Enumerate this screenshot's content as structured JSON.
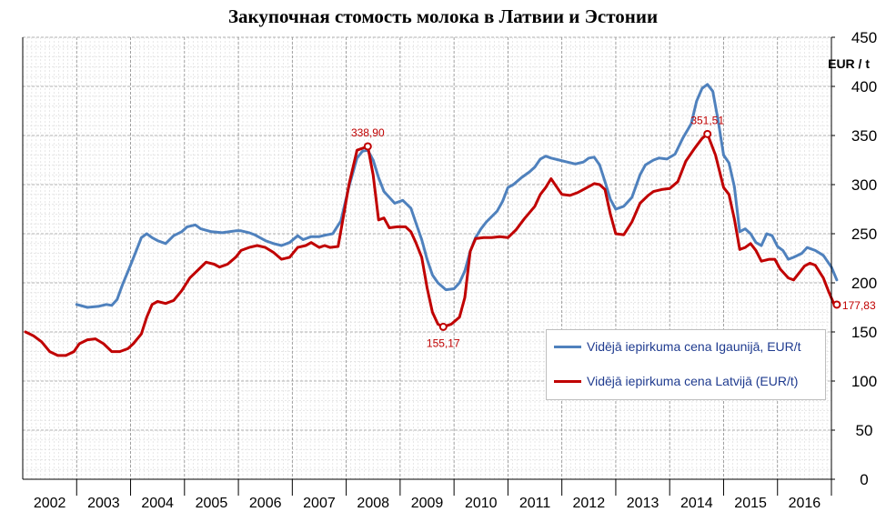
{
  "title": "Закупочная стомость молока в Латвии и Эстонии",
  "chart_data": {
    "type": "line",
    "title": "Закупочная стомость молока в Латвии и Эстонии",
    "unit_label": "EUR / t",
    "ylim": [
      0,
      450
    ],
    "yticks": [
      0,
      50,
      100,
      150,
      200,
      250,
      300,
      350,
      400,
      450
    ],
    "xlim": [
      2001.5,
      2016.5
    ],
    "years": [
      "2002",
      "2003",
      "2004",
      "2005",
      "2006",
      "2007",
      "2008",
      "2009",
      "2010",
      "2011",
      "2012",
      "2013",
      "2014",
      "2015",
      "2016"
    ],
    "grid": true,
    "legend_position": "bottom-right",
    "series": [
      {
        "name": "Vidējā iepirkuma cena Igaunijā, EUR/t",
        "color": "#4f81bd",
        "points": [
          [
            2002.5,
            178
          ],
          [
            2002.7,
            175
          ],
          [
            2002.9,
            176
          ],
          [
            2003.05,
            178
          ],
          [
            2003.15,
            177
          ],
          [
            2003.25,
            183
          ],
          [
            2003.35,
            198
          ],
          [
            2003.5,
            218
          ],
          [
            2003.6,
            232
          ],
          [
            2003.7,
            246
          ],
          [
            2003.8,
            250
          ],
          [
            2003.9,
            246
          ],
          [
            2004.0,
            243
          ],
          [
            2004.15,
            240
          ],
          [
            2004.3,
            248
          ],
          [
            2004.45,
            252
          ],
          [
            2004.55,
            257
          ],
          [
            2004.7,
            259
          ],
          [
            2004.8,
            255
          ],
          [
            2005.0,
            252
          ],
          [
            2005.2,
            251
          ],
          [
            2005.45,
            253
          ],
          [
            2005.55,
            253
          ],
          [
            2005.7,
            251
          ],
          [
            2005.8,
            249
          ],
          [
            2006.0,
            243
          ],
          [
            2006.15,
            240
          ],
          [
            2006.3,
            238
          ],
          [
            2006.45,
            241
          ],
          [
            2006.6,
            248
          ],
          [
            2006.7,
            244
          ],
          [
            2006.85,
            247
          ],
          [
            2007.0,
            247
          ],
          [
            2007.15,
            249
          ],
          [
            2007.25,
            250
          ],
          [
            2007.4,
            263
          ],
          [
            2007.55,
            298
          ],
          [
            2007.7,
            327
          ],
          [
            2007.8,
            334
          ],
          [
            2007.9,
            335
          ],
          [
            2008.0,
            325
          ],
          [
            2008.1,
            307
          ],
          [
            2008.2,
            293
          ],
          [
            2008.3,
            287
          ],
          [
            2008.4,
            281
          ],
          [
            2008.55,
            284
          ],
          [
            2008.7,
            276
          ],
          [
            2008.8,
            260
          ],
          [
            2008.9,
            244
          ],
          [
            2009.0,
            224
          ],
          [
            2009.1,
            208
          ],
          [
            2009.2,
            200
          ],
          [
            2009.35,
            193
          ],
          [
            2009.5,
            194
          ],
          [
            2009.6,
            200
          ],
          [
            2009.7,
            212
          ],
          [
            2009.8,
            232
          ],
          [
            2009.9,
            246
          ],
          [
            2010.0,
            255
          ],
          [
            2010.1,
            262
          ],
          [
            2010.3,
            273
          ],
          [
            2010.4,
            283
          ],
          [
            2010.5,
            297
          ],
          [
            2010.6,
            300
          ],
          [
            2010.75,
            307
          ],
          [
            2010.9,
            313
          ],
          [
            2011.0,
            318
          ],
          [
            2011.1,
            326
          ],
          [
            2011.2,
            329
          ],
          [
            2011.3,
            327
          ],
          [
            2011.45,
            325
          ],
          [
            2011.6,
            323
          ],
          [
            2011.75,
            321
          ],
          [
            2011.9,
            323
          ],
          [
            2012.0,
            327
          ],
          [
            2012.1,
            328
          ],
          [
            2012.2,
            320
          ],
          [
            2012.3,
            303
          ],
          [
            2012.4,
            285
          ],
          [
            2012.5,
            275
          ],
          [
            2012.65,
            278
          ],
          [
            2012.8,
            287
          ],
          [
            2012.95,
            310
          ],
          [
            2013.05,
            320
          ],
          [
            2013.2,
            325
          ],
          [
            2013.3,
            327
          ],
          [
            2013.45,
            326
          ],
          [
            2013.6,
            331
          ],
          [
            2013.75,
            348
          ],
          [
            2013.9,
            362
          ],
          [
            2014.0,
            385
          ],
          [
            2014.1,
            398
          ],
          [
            2014.2,
            402
          ],
          [
            2014.3,
            395
          ],
          [
            2014.4,
            365
          ],
          [
            2014.5,
            330
          ],
          [
            2014.6,
            322
          ],
          [
            2014.7,
            298
          ],
          [
            2014.8,
            252
          ],
          [
            2014.9,
            255
          ],
          [
            2015.0,
            250
          ],
          [
            2015.1,
            241
          ],
          [
            2015.2,
            238
          ],
          [
            2015.3,
            250
          ],
          [
            2015.4,
            248
          ],
          [
            2015.5,
            237
          ],
          [
            2015.6,
            233
          ],
          [
            2015.7,
            224
          ],
          [
            2015.8,
            226
          ],
          [
            2015.95,
            230
          ],
          [
            2016.05,
            236
          ],
          [
            2016.2,
            233
          ],
          [
            2016.35,
            228
          ],
          [
            2016.5,
            216
          ],
          [
            2016.6,
            203
          ]
        ]
      },
      {
        "name": "Vidējā iepirkuma cena Latvijā (EUR/t)",
        "color": "#c00000",
        "points": [
          [
            2001.55,
            150
          ],
          [
            2001.7,
            146
          ],
          [
            2001.85,
            140
          ],
          [
            2002.0,
            130
          ],
          [
            2002.15,
            126
          ],
          [
            2002.3,
            126
          ],
          [
            2002.45,
            130
          ],
          [
            2002.55,
            138
          ],
          [
            2002.7,
            142
          ],
          [
            2002.85,
            143
          ],
          [
            2003.0,
            138
          ],
          [
            2003.15,
            130
          ],
          [
            2003.3,
            130
          ],
          [
            2003.45,
            133
          ],
          [
            2003.55,
            138
          ],
          [
            2003.7,
            148
          ],
          [
            2003.8,
            165
          ],
          [
            2003.9,
            178
          ],
          [
            2004.0,
            181
          ],
          [
            2004.15,
            179
          ],
          [
            2004.3,
            182
          ],
          [
            2004.45,
            192
          ],
          [
            2004.6,
            205
          ],
          [
            2004.75,
            213
          ],
          [
            2004.9,
            221
          ],
          [
            2005.05,
            219
          ],
          [
            2005.15,
            216
          ],
          [
            2005.3,
            219
          ],
          [
            2005.45,
            226
          ],
          [
            2005.55,
            233
          ],
          [
            2005.7,
            236
          ],
          [
            2005.85,
            238
          ],
          [
            2006.0,
            236
          ],
          [
            2006.15,
            231
          ],
          [
            2006.3,
            224
          ],
          [
            2006.45,
            226
          ],
          [
            2006.6,
            236
          ],
          [
            2006.75,
            238
          ],
          [
            2006.85,
            241
          ],
          [
            2007.0,
            236
          ],
          [
            2007.1,
            238
          ],
          [
            2007.2,
            236
          ],
          [
            2007.35,
            237
          ],
          [
            2007.45,
            268
          ],
          [
            2007.55,
            300
          ],
          [
            2007.7,
            335
          ],
          [
            2007.9,
            338.9
          ],
          [
            2008.0,
            310
          ],
          [
            2008.1,
            264
          ],
          [
            2008.2,
            266
          ],
          [
            2008.3,
            256
          ],
          [
            2008.45,
            257
          ],
          [
            2008.6,
            257
          ],
          [
            2008.7,
            252
          ],
          [
            2008.8,
            240
          ],
          [
            2008.9,
            226
          ],
          [
            2009.0,
            195
          ],
          [
            2009.1,
            170
          ],
          [
            2009.2,
            158
          ],
          [
            2009.3,
            155.17
          ],
          [
            2009.45,
            158
          ],
          [
            2009.6,
            165
          ],
          [
            2009.7,
            185
          ],
          [
            2009.8,
            232
          ],
          [
            2009.9,
            245
          ],
          [
            2010.05,
            246
          ],
          [
            2010.2,
            246
          ],
          [
            2010.35,
            247
          ],
          [
            2010.5,
            246
          ],
          [
            2010.65,
            254
          ],
          [
            2010.8,
            265
          ],
          [
            2011.0,
            278
          ],
          [
            2011.1,
            290
          ],
          [
            2011.2,
            297
          ],
          [
            2011.3,
            306
          ],
          [
            2011.4,
            298
          ],
          [
            2011.5,
            290
          ],
          [
            2011.65,
            289
          ],
          [
            2011.8,
            292
          ],
          [
            2012.0,
            298
          ],
          [
            2012.1,
            301
          ],
          [
            2012.2,
            300
          ],
          [
            2012.3,
            295
          ],
          [
            2012.4,
            270
          ],
          [
            2012.5,
            250
          ],
          [
            2012.65,
            249
          ],
          [
            2012.8,
            262
          ],
          [
            2012.95,
            281
          ],
          [
            2013.1,
            289
          ],
          [
            2013.2,
            293
          ],
          [
            2013.35,
            295
          ],
          [
            2013.5,
            296
          ],
          [
            2013.65,
            303
          ],
          [
            2013.8,
            324
          ],
          [
            2013.95,
            336
          ],
          [
            2014.1,
            347
          ],
          [
            2014.2,
            351.51
          ],
          [
            2014.35,
            330
          ],
          [
            2014.5,
            297
          ],
          [
            2014.6,
            290
          ],
          [
            2014.7,
            265
          ],
          [
            2014.8,
            234
          ],
          [
            2014.9,
            236
          ],
          [
            2015.0,
            240
          ],
          [
            2015.1,
            233
          ],
          [
            2015.2,
            222
          ],
          [
            2015.35,
            224
          ],
          [
            2015.45,
            224
          ],
          [
            2015.55,
            214
          ],
          [
            2015.7,
            205
          ],
          [
            2015.8,
            203
          ],
          [
            2016.0,
            217
          ],
          [
            2016.1,
            220
          ],
          [
            2016.2,
            218
          ],
          [
            2016.35,
            205
          ],
          [
            2016.45,
            191
          ],
          [
            2016.55,
            178
          ],
          [
            2016.6,
            177.83
          ]
        ]
      }
    ],
    "annotations": [
      {
        "text": "338,90",
        "x": 2007.9,
        "y": 338.9,
        "position": "above"
      },
      {
        "text": "155,17",
        "x": 2009.3,
        "y": 155.17,
        "position": "below"
      },
      {
        "text": "351,51",
        "x": 2014.2,
        "y": 351.51,
        "position": "above"
      },
      {
        "text": "177,83",
        "x": 2016.6,
        "y": 177.83,
        "position": "right"
      }
    ]
  }
}
